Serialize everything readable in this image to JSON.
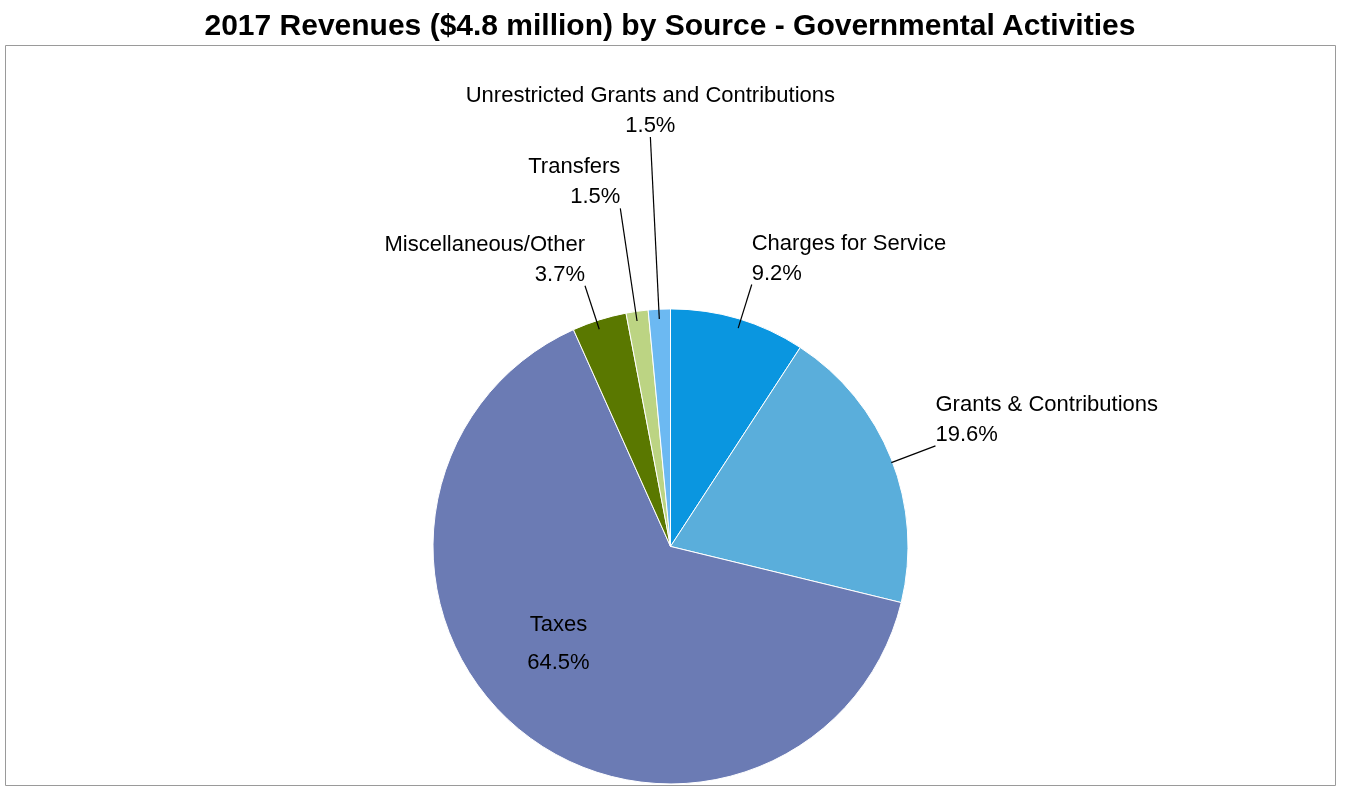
{
  "chart_data": {
    "type": "pie",
    "title": "2017 Revenues ($4.8 million) by Source - Governmental Activities",
    "categories": [
      "Charges for Service",
      "Grants & Contributions",
      "Taxes",
      "Miscellaneous/Other",
      "Transfers",
      "Unrestricted Grants and Contributions"
    ],
    "values": [
      9.2,
      19.6,
      64.5,
      3.7,
      1.5,
      1.5
    ],
    "value_labels": [
      "9.2%",
      "19.6%",
      "64.5%",
      "3.7%",
      "1.5%",
      "1.5%"
    ],
    "colors": [
      "#0a96e0",
      "#5aaedb",
      "#6b7bb4",
      "#5a7800",
      "#bcd483",
      "#6cb9f2"
    ]
  }
}
